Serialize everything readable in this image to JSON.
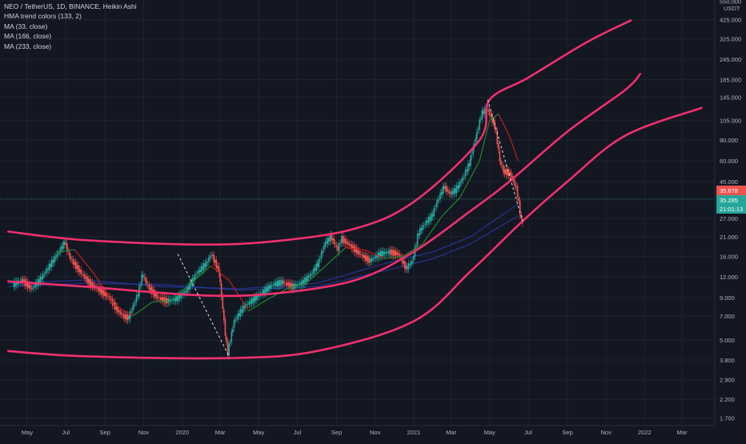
{
  "legend": {
    "symbol": "NEO / TetherUS, 1D, BINANCE, Heikin Ashi",
    "indicators": [
      "HMA trend colors (133, 2)",
      "MA (33, close)",
      "MA (166, close)",
      "MA (233, close)"
    ]
  },
  "colors": {
    "background": "#131722",
    "grid": "#1f2330",
    "axis_text": "#b2b5be",
    "channel": "#f0306e",
    "candle_up": "#26a69a",
    "candle_down": "#ef5350",
    "hma_up": "#1b8a2e",
    "hma_down": "#c41e1e",
    "ma_blue": "#2a3aa6",
    "current_price_bg": "#ef5350",
    "countdown_bg": "#26a69a"
  },
  "price_axis": {
    "currency": "USDT",
    "labels": [
      "550.000",
      "425.000",
      "325.000",
      "245.000",
      "185.000",
      "145.000",
      "105.000",
      "80.000",
      "60.000",
      "45.000",
      "35.000",
      "27.000",
      "21.000",
      "16.000",
      "12.000",
      "9.000",
      "7.000",
      "5.000",
      "3.800",
      "2.900",
      "2.200",
      "1.700"
    ],
    "last_price_tag": "35.678",
    "current_price_tag": "35.285",
    "countdown_tag": "21:01:13"
  },
  "time_axis": {
    "labels": [
      "May",
      "Jul",
      "Sep",
      "Nov",
      "2020",
      "Mar",
      "May",
      "Jul",
      "Sep",
      "Nov",
      "2021",
      "Mar",
      "May",
      "Jul",
      "Sep",
      "Nov",
      "2022",
      "Mar"
    ]
  },
  "chart_data": {
    "type": "line",
    "title": "NEO / TetherUS, 1D, BINANCE, Heikin Ashi",
    "scale": "log",
    "ylim": [
      1.5,
      600
    ],
    "xlim": [
      "2019-04-01",
      "2022-04-01"
    ],
    "grid": true,
    "series": [
      {
        "name": "Heikin Ashi",
        "points": [
          [
            "2019-04-10",
            10.8
          ],
          [
            "2019-04-25",
            11.5
          ],
          [
            "2019-05-10",
            10.2
          ],
          [
            "2019-05-25",
            11.8
          ],
          [
            "2019-06-10",
            14.5
          ],
          [
            "2019-06-22",
            17.0
          ],
          [
            "2019-07-01",
            19.5
          ],
          [
            "2019-07-10",
            15.5
          ],
          [
            "2019-07-25",
            13.0
          ],
          [
            "2019-08-10",
            11.0
          ],
          [
            "2019-08-25",
            10.0
          ],
          [
            "2019-09-10",
            9.0
          ],
          [
            "2019-09-20",
            7.8
          ],
          [
            "2019-10-01",
            7.0
          ],
          [
            "2019-10-10",
            6.8
          ],
          [
            "2019-10-25",
            9.5
          ],
          [
            "2019-11-01",
            12.5
          ],
          [
            "2019-11-10",
            10.5
          ],
          [
            "2019-11-25",
            9.0
          ],
          [
            "2019-12-10",
            8.6
          ],
          [
            "2019-12-25",
            8.9
          ],
          [
            "2020-01-10",
            10.0
          ],
          [
            "2020-01-25",
            12.5
          ],
          [
            "2020-02-10",
            14.5
          ],
          [
            "2020-02-18",
            16.5
          ],
          [
            "2020-03-01",
            13.0
          ],
          [
            "2020-03-12",
            5.0
          ],
          [
            "2020-03-15",
            4.2
          ],
          [
            "2020-03-25",
            6.5
          ],
          [
            "2020-04-10",
            8.0
          ],
          [
            "2020-04-25",
            8.8
          ],
          [
            "2020-05-10",
            9.8
          ],
          [
            "2020-05-25",
            10.8
          ],
          [
            "2020-06-10",
            11.2
          ],
          [
            "2020-06-25",
            10.5
          ],
          [
            "2020-07-10",
            11.0
          ],
          [
            "2020-07-25",
            12.5
          ],
          [
            "2020-08-05",
            14.5
          ],
          [
            "2020-08-15",
            19.0
          ],
          [
            "2020-08-25",
            21.0
          ],
          [
            "2020-09-05",
            17.5
          ],
          [
            "2020-09-10",
            20.5
          ],
          [
            "2020-09-25",
            18.5
          ],
          [
            "2020-10-10",
            16.5
          ],
          [
            "2020-10-25",
            15.0
          ],
          [
            "2020-11-10",
            16.5
          ],
          [
            "2020-11-25",
            17.0
          ],
          [
            "2020-12-10",
            16.5
          ],
          [
            "2020-12-22",
            13.5
          ],
          [
            "2021-01-01",
            15.0
          ],
          [
            "2021-01-10",
            22.0
          ],
          [
            "2021-01-20",
            25.0
          ],
          [
            "2021-02-01",
            28.0
          ],
          [
            "2021-02-10",
            35.0
          ],
          [
            "2021-02-20",
            42.0
          ],
          [
            "2021-03-01",
            38.0
          ],
          [
            "2021-03-10",
            40.0
          ],
          [
            "2021-03-20",
            46.0
          ],
          [
            "2021-04-01",
            58.0
          ],
          [
            "2021-04-10",
            80.0
          ],
          [
            "2021-04-20",
            115.0
          ],
          [
            "2021-04-28",
            125.0
          ],
          [
            "2021-05-05",
            110.0
          ],
          [
            "2021-05-12",
            95.0
          ],
          [
            "2021-05-19",
            60.0
          ],
          [
            "2021-05-25",
            52.0
          ],
          [
            "2021-06-05",
            50.0
          ],
          [
            "2021-06-15",
            40.0
          ],
          [
            "2021-06-22",
            26.0
          ]
        ]
      },
      {
        "name": "HMA trend colors (133, 2)",
        "points": [
          [
            "2019-06-15",
            17.0
          ],
          [
            "2019-07-15",
            17.5
          ],
          [
            "2019-08-15",
            12.5
          ],
          [
            "2019-09-15",
            8.2
          ],
          [
            "2019-10-15",
            7.0
          ],
          [
            "2019-11-15",
            8.5
          ],
          [
            "2019-12-15",
            8.6
          ],
          [
            "2020-01-15",
            11.0
          ],
          [
            "2020-02-15",
            14.0
          ],
          [
            "2020-03-15",
            11.5
          ],
          [
            "2020-04-15",
            7.5
          ],
          [
            "2020-05-15",
            8.8
          ],
          [
            "2020-06-15",
            10.2
          ],
          [
            "2020-07-15",
            11.0
          ],
          [
            "2020-08-15",
            14.0
          ],
          [
            "2020-09-15",
            18.0
          ],
          [
            "2020-10-15",
            17.5
          ],
          [
            "2020-11-15",
            15.5
          ],
          [
            "2020-12-15",
            16.0
          ],
          [
            "2021-01-15",
            19.0
          ],
          [
            "2021-02-15",
            28.0
          ],
          [
            "2021-03-15",
            36.0
          ],
          [
            "2021-04-15",
            60.0
          ],
          [
            "2021-05-01",
            105.0
          ],
          [
            "2021-05-15",
            115.0
          ],
          [
            "2021-06-01",
            85.0
          ],
          [
            "2021-06-15",
            60.0
          ]
        ]
      },
      {
        "name": "MA (166, close)",
        "points": [
          [
            "2019-04-01",
            11.0
          ],
          [
            "2019-08-01",
            11.5
          ],
          [
            "2019-12-01",
            10.5
          ],
          [
            "2020-04-01",
            10.2
          ],
          [
            "2020-08-01",
            11.0
          ],
          [
            "2020-12-01",
            15.0
          ],
          [
            "2021-02-01",
            17.0
          ],
          [
            "2021-04-01",
            21.0
          ],
          [
            "2021-06-15",
            33.0
          ]
        ]
      },
      {
        "name": "MA (233, close)",
        "points": [
          [
            "2019-04-01",
            10.5
          ],
          [
            "2019-08-01",
            11.0
          ],
          [
            "2019-12-01",
            10.8
          ],
          [
            "2020-04-01",
            10.0
          ],
          [
            "2020-08-01",
            10.5
          ],
          [
            "2020-12-01",
            13.5
          ],
          [
            "2021-02-01",
            15.5
          ],
          [
            "2021-04-01",
            19.0
          ],
          [
            "2021-06-15",
            28.0
          ]
        ]
      },
      {
        "name": "Channel upper",
        "points": [
          [
            "2019-04-01",
            22.5
          ],
          [
            "2019-08-01",
            20.0
          ],
          [
            "2020-02-01",
            18.8
          ],
          [
            "2020-06-01",
            19.8
          ],
          [
            "2020-10-01",
            23.5
          ],
          [
            "2021-01-01",
            34.0
          ],
          [
            "2021-04-15",
            80.0
          ],
          [
            "2021-05-01",
            140.0
          ],
          [
            "2021-07-01",
            190.0
          ],
          [
            "2021-10-01",
            310.0
          ],
          [
            "2021-12-10",
            420.0
          ]
        ]
      },
      {
        "name": "Channel middle",
        "points": [
          [
            "2019-04-01",
            11.3
          ],
          [
            "2019-08-01",
            10.5
          ],
          [
            "2020-02-01",
            9.3
          ],
          [
            "2020-06-01",
            9.6
          ],
          [
            "2020-10-01",
            11.5
          ],
          [
            "2021-01-01",
            17.0
          ],
          [
            "2021-04-01",
            30.0
          ],
          [
            "2021-06-01",
            45.0
          ],
          [
            "2021-09-01",
            90.0
          ],
          [
            "2021-12-01",
            160.0
          ],
          [
            "2021-12-25",
            200.0
          ]
        ]
      },
      {
        "name": "Channel lower",
        "points": [
          [
            "2019-04-01",
            4.3
          ],
          [
            "2019-08-01",
            4.0
          ],
          [
            "2020-03-15",
            3.9
          ],
          [
            "2020-08-01",
            4.3
          ],
          [
            "2021-01-01",
            6.5
          ],
          [
            "2021-04-01",
            13.0
          ],
          [
            "2021-06-22",
            26.0
          ],
          [
            "2021-09-01",
            45.0
          ],
          [
            "2021-12-01",
            85.0
          ],
          [
            "2022-04-01",
            125.0
          ]
        ]
      }
    ],
    "annotations": [
      {
        "type": "dashed_line",
        "from": [
          "2019-12-25",
          16.5
        ],
        "to": [
          "2020-03-15",
          4.0
        ]
      },
      {
        "type": "dashed_line",
        "from": [
          "2021-04-28",
          140.0
        ],
        "to": [
          "2021-06-22",
          26.0
        ]
      },
      {
        "type": "dashed_line",
        "from": [
          "2021-05-01",
          6.0
        ],
        "to": [
          "2021-06-22",
          26.0
        ],
        "note": ""
      }
    ]
  }
}
